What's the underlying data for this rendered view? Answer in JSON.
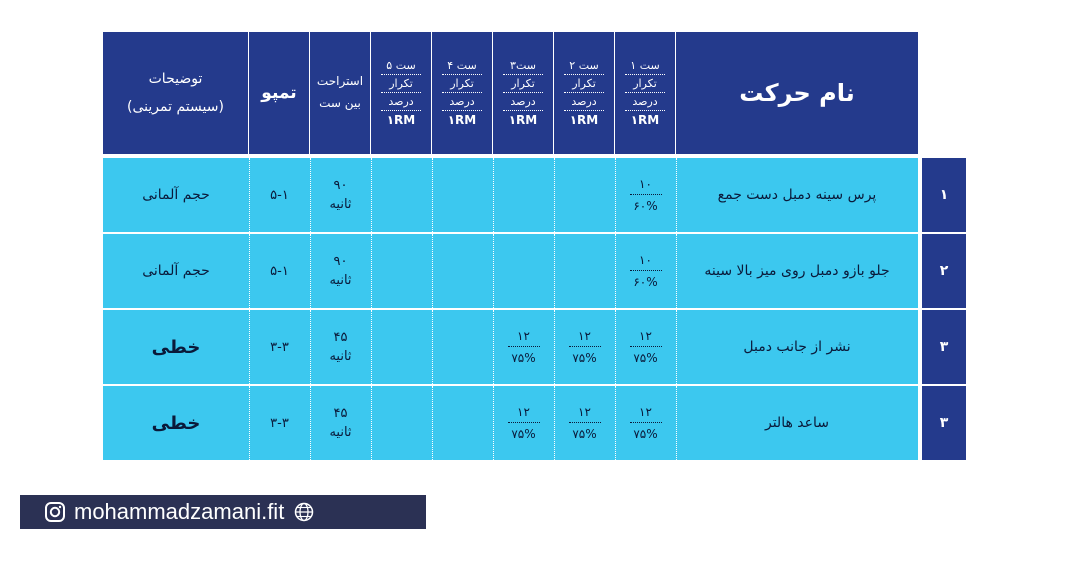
{
  "header": {
    "name_label": "نام حرکت",
    "sets": [
      {
        "title": "ست ۱",
        "sub1": "تکرار",
        "sub2": "درصد",
        "rm": "۱RM"
      },
      {
        "title": "ست ۲",
        "sub1": "تکرار",
        "sub2": "درصد",
        "rm": "۱RM"
      },
      {
        "title": "ست۳",
        "sub1": "تکرار",
        "sub2": "درصد",
        "rm": "۱RM"
      },
      {
        "title": "ست ۴",
        "sub1": "تکرار",
        "sub2": "درصد",
        "rm": "۱RM"
      },
      {
        "title": "ست ۵",
        "sub1": "تکرار",
        "sub2": "درصد",
        "rm": "۱RM"
      }
    ],
    "rest_line1": "استراحت",
    "rest_line2": "بین ست",
    "tempo": "تمپو",
    "desc_line1": "توضیحات",
    "desc_line2": "(سیستم تمرینی)"
  },
  "rows": [
    {
      "num": "۱",
      "name": "پرس سینه دمبل دست جمع",
      "sets": [
        {
          "reps": "۱۰",
          "pct": "۶۰%"
        },
        null,
        null,
        null,
        null
      ],
      "rest_value": "۹۰",
      "rest_unit": "ثانیه",
      "tempo": "۵-۱",
      "desc": "حجم آلمانی"
    },
    {
      "num": "۲",
      "name": "جلو بازو دمبل روی میز بالا سینه",
      "sets": [
        {
          "reps": "۱۰",
          "pct": "۶۰%"
        },
        null,
        null,
        null,
        null
      ],
      "rest_value": "۹۰",
      "rest_unit": "ثانیه",
      "tempo": "۵-۱",
      "desc": "حجم آلمانی"
    },
    {
      "num": "۳",
      "name": "نشر از جانب دمبل",
      "sets": [
        {
          "reps": "۱۲",
          "pct": "۷۵%"
        },
        {
          "reps": "۱۲",
          "pct": "۷۵%"
        },
        {
          "reps": "۱۲",
          "pct": "۷۵%"
        },
        null,
        null
      ],
      "rest_value": "۴۵",
      "rest_unit": "ثانیه",
      "tempo": "۳-۳",
      "desc": "خطی"
    },
    {
      "num": "۳",
      "name": "ساعد هالتر",
      "sets": [
        {
          "reps": "۱۲",
          "pct": "۷۵%"
        },
        {
          "reps": "۱۲",
          "pct": "۷۵%"
        },
        {
          "reps": "۱۲",
          "pct": "۷۵%"
        },
        null,
        null
      ],
      "rest_value": "۴۵",
      "rest_unit": "ثانیه",
      "tempo": "۳-۳",
      "desc": "خطی"
    }
  ],
  "footer": {
    "handle": "mohammadzamani.fit",
    "instagram_icon": "instagram-icon",
    "globe_icon": "globe-icon"
  }
}
